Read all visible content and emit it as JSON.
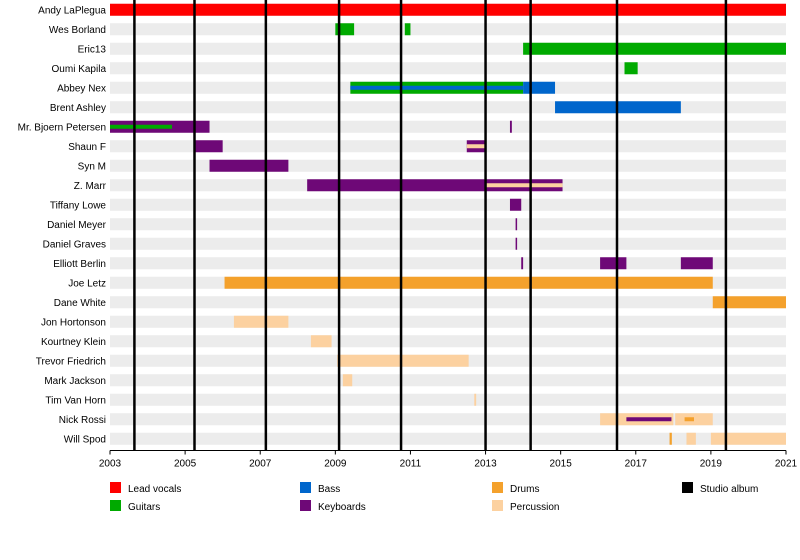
{
  "chart_data": {
    "type": "timeline",
    "title": "",
    "x_range": [
      2003,
      2021
    ],
    "x_ticks": [
      "2003",
      "2005",
      "2007",
      "2009",
      "2011",
      "2013",
      "2015",
      "2017",
      "2019",
      "2021"
    ],
    "studio_albums": [
      2003.65,
      2005.25,
      2007.15,
      2009.1,
      2010.75,
      2013.0,
      2014.2,
      2016.5,
      2019.4
    ],
    "roles": [
      {
        "key": "lead_vocals",
        "label": "Lead vocals",
        "color": "#ff0000"
      },
      {
        "key": "guitars",
        "label": "Guitars",
        "color": "#00aa00"
      },
      {
        "key": "bass",
        "label": "Bass",
        "color": "#0066cc"
      },
      {
        "key": "keyboards",
        "label": "Keyboards",
        "color": "#6e0877"
      },
      {
        "key": "drums",
        "label": "Drums",
        "color": "#f4a12c"
      },
      {
        "key": "percussion",
        "label": "Percussion",
        "color": "#fcd1a0"
      },
      {
        "key": "studio_album",
        "label": "Studio album",
        "color": "#000000"
      }
    ],
    "members": [
      {
        "name": "Andy LaPlegua",
        "spans": [
          {
            "role": "lead_vocals",
            "start": 2003.0,
            "end": 2021.1
          }
        ]
      },
      {
        "name": "Wes Borland",
        "spans": [
          {
            "role": "guitars",
            "start": 2009.0,
            "end": 2009.5
          },
          {
            "role": "guitars",
            "start": 2010.85,
            "end": 2011.0
          }
        ]
      },
      {
        "name": "Eric13",
        "spans": [
          {
            "role": "guitars",
            "start": 2014.0,
            "end": 2021.1
          }
        ]
      },
      {
        "name": "Oumi Kapila",
        "spans": [
          {
            "role": "guitars",
            "start": 2016.7,
            "end": 2017.05
          }
        ]
      },
      {
        "name": "Abbey Nex",
        "spans": [
          {
            "role": "guitars",
            "start": 2009.4,
            "end": 2014.0
          },
          {
            "role": "bass",
            "start": 2014.0,
            "end": 2014.85
          }
        ],
        "overlays": [
          {
            "role": "bass",
            "start": 2009.4,
            "end": 2014.0
          }
        ]
      },
      {
        "name": "Brent Ashley",
        "spans": [
          {
            "role": "bass",
            "start": 2014.85,
            "end": 2018.2
          }
        ]
      },
      {
        "name": "Mr. Bjoern Petersen",
        "spans": [
          {
            "role": "keyboards",
            "start": 2003.0,
            "end": 2005.65
          },
          {
            "role": "keyboards",
            "start": 2013.65,
            "end": 2013.7
          }
        ],
        "overlays": [
          {
            "role": "guitars",
            "start": 2003.0,
            "end": 2004.65
          }
        ]
      },
      {
        "name": "Shaun F",
        "spans": [
          {
            "role": "keyboards",
            "start": 2005.25,
            "end": 2006.0
          },
          {
            "role": "keyboards",
            "start": 2012.5,
            "end": 2013.0
          }
        ],
        "overlays": [
          {
            "role": "percussion",
            "start": 2012.5,
            "end": 2013.0
          }
        ]
      },
      {
        "name": "Syn M",
        "spans": [
          {
            "role": "keyboards",
            "start": 2005.65,
            "end": 2007.75
          }
        ]
      },
      {
        "name": "Z. Marr",
        "spans": [
          {
            "role": "keyboards",
            "start": 2008.25,
            "end": 2015.05
          }
        ],
        "overlays": [
          {
            "role": "percussion",
            "start": 2013.0,
            "end": 2015.05
          }
        ]
      },
      {
        "name": "Tiffany Lowe",
        "spans": [
          {
            "role": "keyboards",
            "start": 2013.65,
            "end": 2013.95
          }
        ]
      },
      {
        "name": "Daniel Meyer",
        "spans": [
          {
            "role": "keyboards",
            "start": 2013.8,
            "end": 2013.84
          }
        ]
      },
      {
        "name": "Daniel Graves",
        "spans": [
          {
            "role": "keyboards",
            "start": 2013.8,
            "end": 2013.84
          }
        ]
      },
      {
        "name": "Elliott Berlin",
        "spans": [
          {
            "role": "keyboards",
            "start": 2013.95,
            "end": 2014.0
          },
          {
            "role": "keyboards",
            "start": 2016.05,
            "end": 2016.75
          },
          {
            "role": "keyboards",
            "start": 2018.2,
            "end": 2019.05
          }
        ]
      },
      {
        "name": "Joe Letz",
        "spans": [
          {
            "role": "drums",
            "start": 2006.05,
            "end": 2019.05
          }
        ]
      },
      {
        "name": "Dane White",
        "spans": [
          {
            "role": "drums",
            "start": 2019.05,
            "end": 2021.1
          }
        ]
      },
      {
        "name": "Jon Hortonson",
        "spans": [
          {
            "role": "percussion",
            "start": 2006.3,
            "end": 2007.75
          }
        ]
      },
      {
        "name": "Kourtney Klein",
        "spans": [
          {
            "role": "percussion",
            "start": 2008.35,
            "end": 2008.9
          }
        ]
      },
      {
        "name": "Trevor Friedrich",
        "spans": [
          {
            "role": "percussion",
            "start": 2009.05,
            "end": 2012.55
          }
        ]
      },
      {
        "name": "Mark Jackson",
        "spans": [
          {
            "role": "percussion",
            "start": 2009.2,
            "end": 2009.45
          }
        ]
      },
      {
        "name": "Tim Van Horn",
        "spans": [
          {
            "role": "percussion",
            "start": 2012.7,
            "end": 2012.75
          }
        ]
      },
      {
        "name": "Nick Rossi",
        "spans": [
          {
            "role": "percussion",
            "start": 2016.05,
            "end": 2018.0
          },
          {
            "role": "percussion",
            "start": 2018.05,
            "end": 2019.05
          }
        ],
        "overlays": [
          {
            "role": "keyboards",
            "start": 2016.75,
            "end": 2017.95
          },
          {
            "role": "drums",
            "start": 2018.3,
            "end": 2018.55
          }
        ]
      },
      {
        "name": "Will Spod",
        "spans": [
          {
            "role": "drums",
            "start": 2017.9,
            "end": 2017.96
          },
          {
            "role": "percussion",
            "start": 2018.35,
            "end": 2018.6
          },
          {
            "role": "percussion",
            "start": 2019.0,
            "end": 2021.1
          }
        ]
      }
    ]
  }
}
